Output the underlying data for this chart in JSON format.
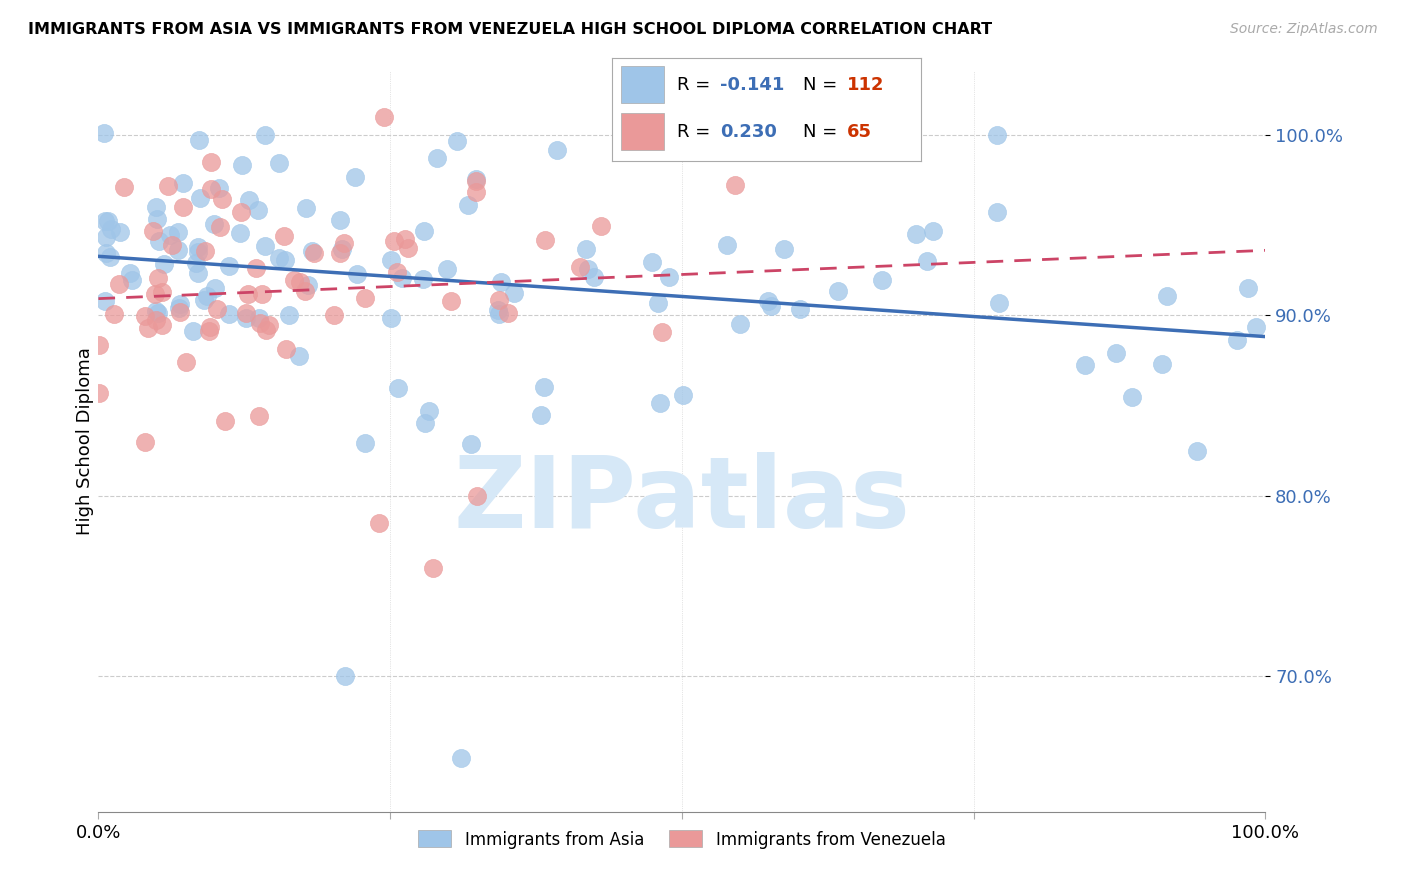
{
  "title": "IMMIGRANTS FROM ASIA VS IMMIGRANTS FROM VENEZUELA HIGH SCHOOL DIPLOMA CORRELATION CHART",
  "source": "Source: ZipAtlas.com",
  "ylabel": "High School Diploma",
  "ytick_labels": [
    "100.0%",
    "90.0%",
    "80.0%",
    "70.0%"
  ],
  "ytick_values": [
    1.0,
    0.9,
    0.8,
    0.7
  ],
  "xlim": [
    0.0,
    1.0
  ],
  "ylim": [
    0.625,
    1.035
  ],
  "legend_r_asia": "-0.141",
  "legend_n_asia": "112",
  "legend_r_venezuela": "0.230",
  "legend_n_venezuela": "65",
  "legend_label_asia": "Immigrants from Asia",
  "legend_label_venezuela": "Immigrants from Venezuela",
  "color_asia": "#9fc5e8",
  "color_venezuela": "#ea9999",
  "color_trendline_asia": "#3d6eb5",
  "color_trendline_venezuela": "#cc4466",
  "color_r_value": "#3d6eb5",
  "color_n_value": "#cc3300",
  "watermark_text": "ZIPatlas",
  "watermark_color": "#d6e8f7"
}
